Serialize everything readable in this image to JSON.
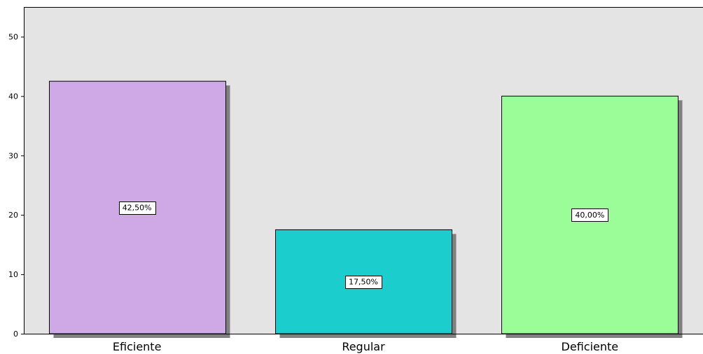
{
  "chart_data": {
    "type": "bar",
    "categories": [
      "Eficiente",
      "Regular",
      "Deficiente"
    ],
    "values": [
      42.5,
      17.5,
      40.0
    ],
    "data_labels": [
      "42,50%",
      "17,50%",
      "40,00%"
    ],
    "colors": [
      "#CFA8E6",
      "#1CCDCE",
      "#9AFD97"
    ],
    "ylim": [
      0,
      55
    ],
    "yticks": [
      0,
      10,
      20,
      30,
      40,
      50
    ],
    "ytick_labels": [
      "0",
      "10",
      "20",
      "30",
      "40",
      "50"
    ],
    "plot_background": "#E4E4E4",
    "grid": false,
    "legend": false,
    "title": "",
    "xlabel": "",
    "ylabel": ""
  }
}
